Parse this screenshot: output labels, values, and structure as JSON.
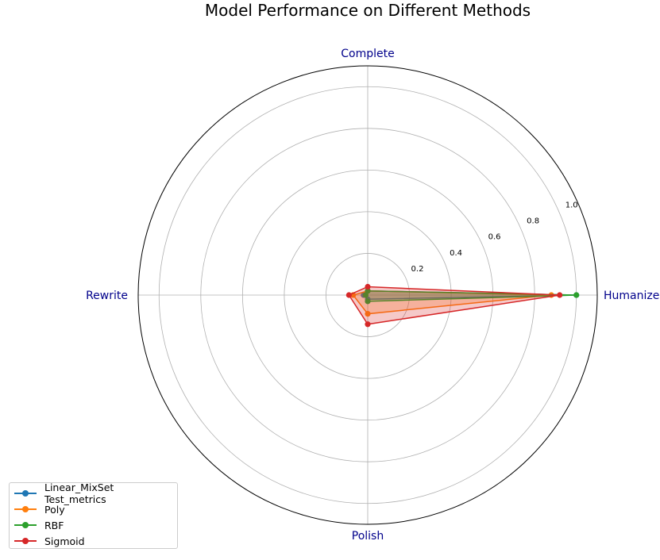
{
  "chart_data": {
    "type": "radar",
    "title": "Model Performance on Different Methods",
    "axes": [
      "Humanize",
      "Complete",
      "Rewrite",
      "Polish"
    ],
    "rlim": [
      0,
      1.1
    ],
    "r_ticks": [
      "0.2",
      "0.4",
      "0.6",
      "0.8",
      "1.0"
    ],
    "grid": true,
    "legend_position": "lower-left",
    "series": [
      {
        "name": "Linear_MixSet Test_metrics",
        "color": "#1f77b4",
        "values": [
          1.0,
          0.02,
          0.02,
          0.02
        ]
      },
      {
        "name": "Poly",
        "color": "#ff7f0e",
        "values": [
          0.88,
          0.02,
          0.07,
          0.09
        ]
      },
      {
        "name": "RBF",
        "color": "#2ca02c",
        "values": [
          1.0,
          0.02,
          0.01,
          0.03
        ]
      },
      {
        "name": "Sigmoid",
        "color": "#d62728",
        "values": [
          0.92,
          0.04,
          0.09,
          0.14
        ]
      }
    ]
  }
}
